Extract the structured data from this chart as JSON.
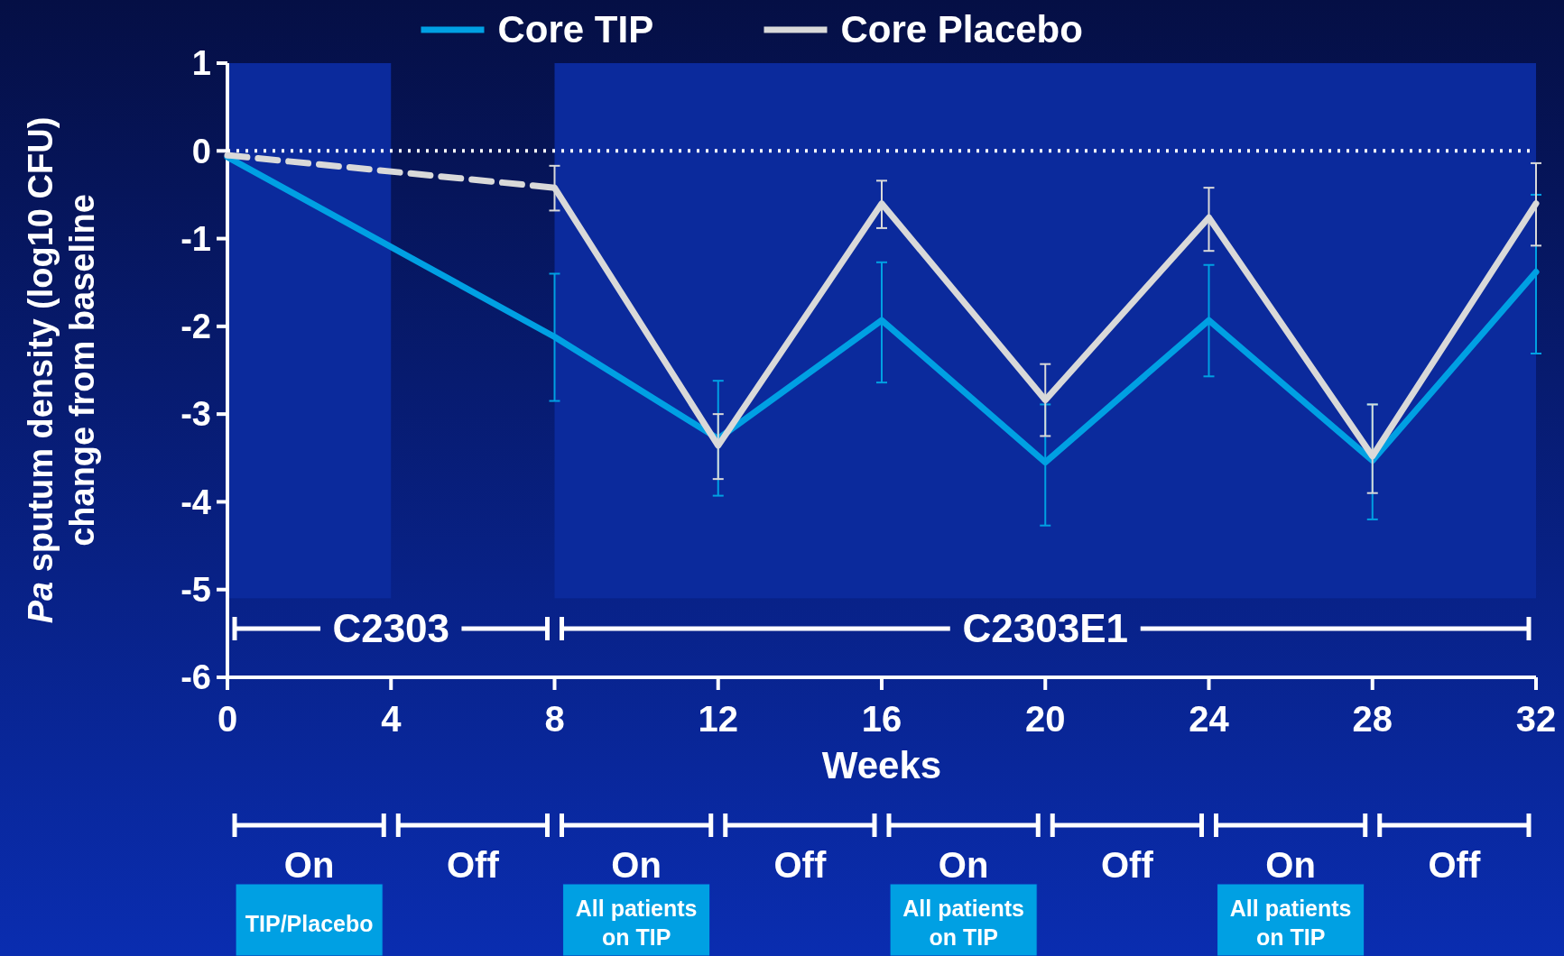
{
  "chart_data": {
    "type": "line",
    "xlabel": "Weeks",
    "ylabel": "Pa sputum density (log10 CFU)\nchange from baseline",
    "x": [
      0,
      8,
      12,
      16,
      20,
      24,
      28,
      32
    ],
    "xlim": [
      0,
      32
    ],
    "xticks": [
      0,
      4,
      8,
      12,
      16,
      20,
      24,
      28,
      32
    ],
    "ylim": [
      -6,
      1
    ],
    "yticks": [
      -6,
      -5,
      -4,
      -3,
      -2,
      -1,
      0,
      1
    ],
    "legend": "top",
    "grid": false,
    "marker": "none",
    "series": [
      {
        "name": "Core TIP",
        "color": "#00a0e3",
        "line_style": "solid",
        "values": [
          -0.07,
          -2.12,
          -3.28,
          -1.93,
          -3.55,
          -1.93,
          -3.53,
          -1.38
        ],
        "errors": [
          null,
          [
            -2.85,
            -1.4
          ],
          [
            -3.93,
            -2.62
          ],
          [
            -2.64,
            -1.27
          ],
          [
            -4.27,
            -2.89
          ],
          [
            -2.57,
            -1.3
          ],
          [
            -4.2,
            -2.89
          ],
          [
            -2.31,
            -0.5
          ]
        ]
      },
      {
        "name": "Core Placebo",
        "color": "#d9d9d9",
        "line_style": "solid",
        "x": [
          8,
          12,
          16,
          20,
          24,
          28,
          32
        ],
        "values": [
          -0.42,
          -3.36,
          -0.6,
          -2.84,
          -0.76,
          -3.48,
          -0.6
        ],
        "errors": [
          [
            -0.68,
            -0.17
          ],
          [
            -3.74,
            -3.0
          ],
          [
            -0.88,
            -0.34
          ],
          [
            -3.25,
            -2.43
          ],
          [
            -1.14,
            -0.42
          ],
          [
            -3.9,
            -2.89
          ],
          [
            -1.08,
            -0.14
          ]
        ]
      },
      {
        "color": "#d9d9d9",
        "line_style": "dashed",
        "x": [
          0,
          8
        ],
        "values": [
          -0.05,
          -0.42
        ]
      }
    ],
    "ref_lines": [
      {
        "axis": "y",
        "value": 0,
        "color": "#ffffff",
        "line_style": "dotted"
      }
    ],
    "bands": [
      {
        "axis": "x",
        "from": 0,
        "to": 4,
        "color": "#0b2a9c"
      },
      {
        "axis": "x",
        "from": 8,
        "to": 32,
        "color": "#0b2a9c"
      }
    ],
    "annotations": [
      "C2303",
      "C2303E1",
      "On",
      "Off",
      "On",
      "Off",
      "On",
      "Off",
      "On",
      "Off",
      "TIP/Placebo",
      "All patients on TIP",
      "All patients on TIP",
      "All patients on TIP"
    ]
  }
}
